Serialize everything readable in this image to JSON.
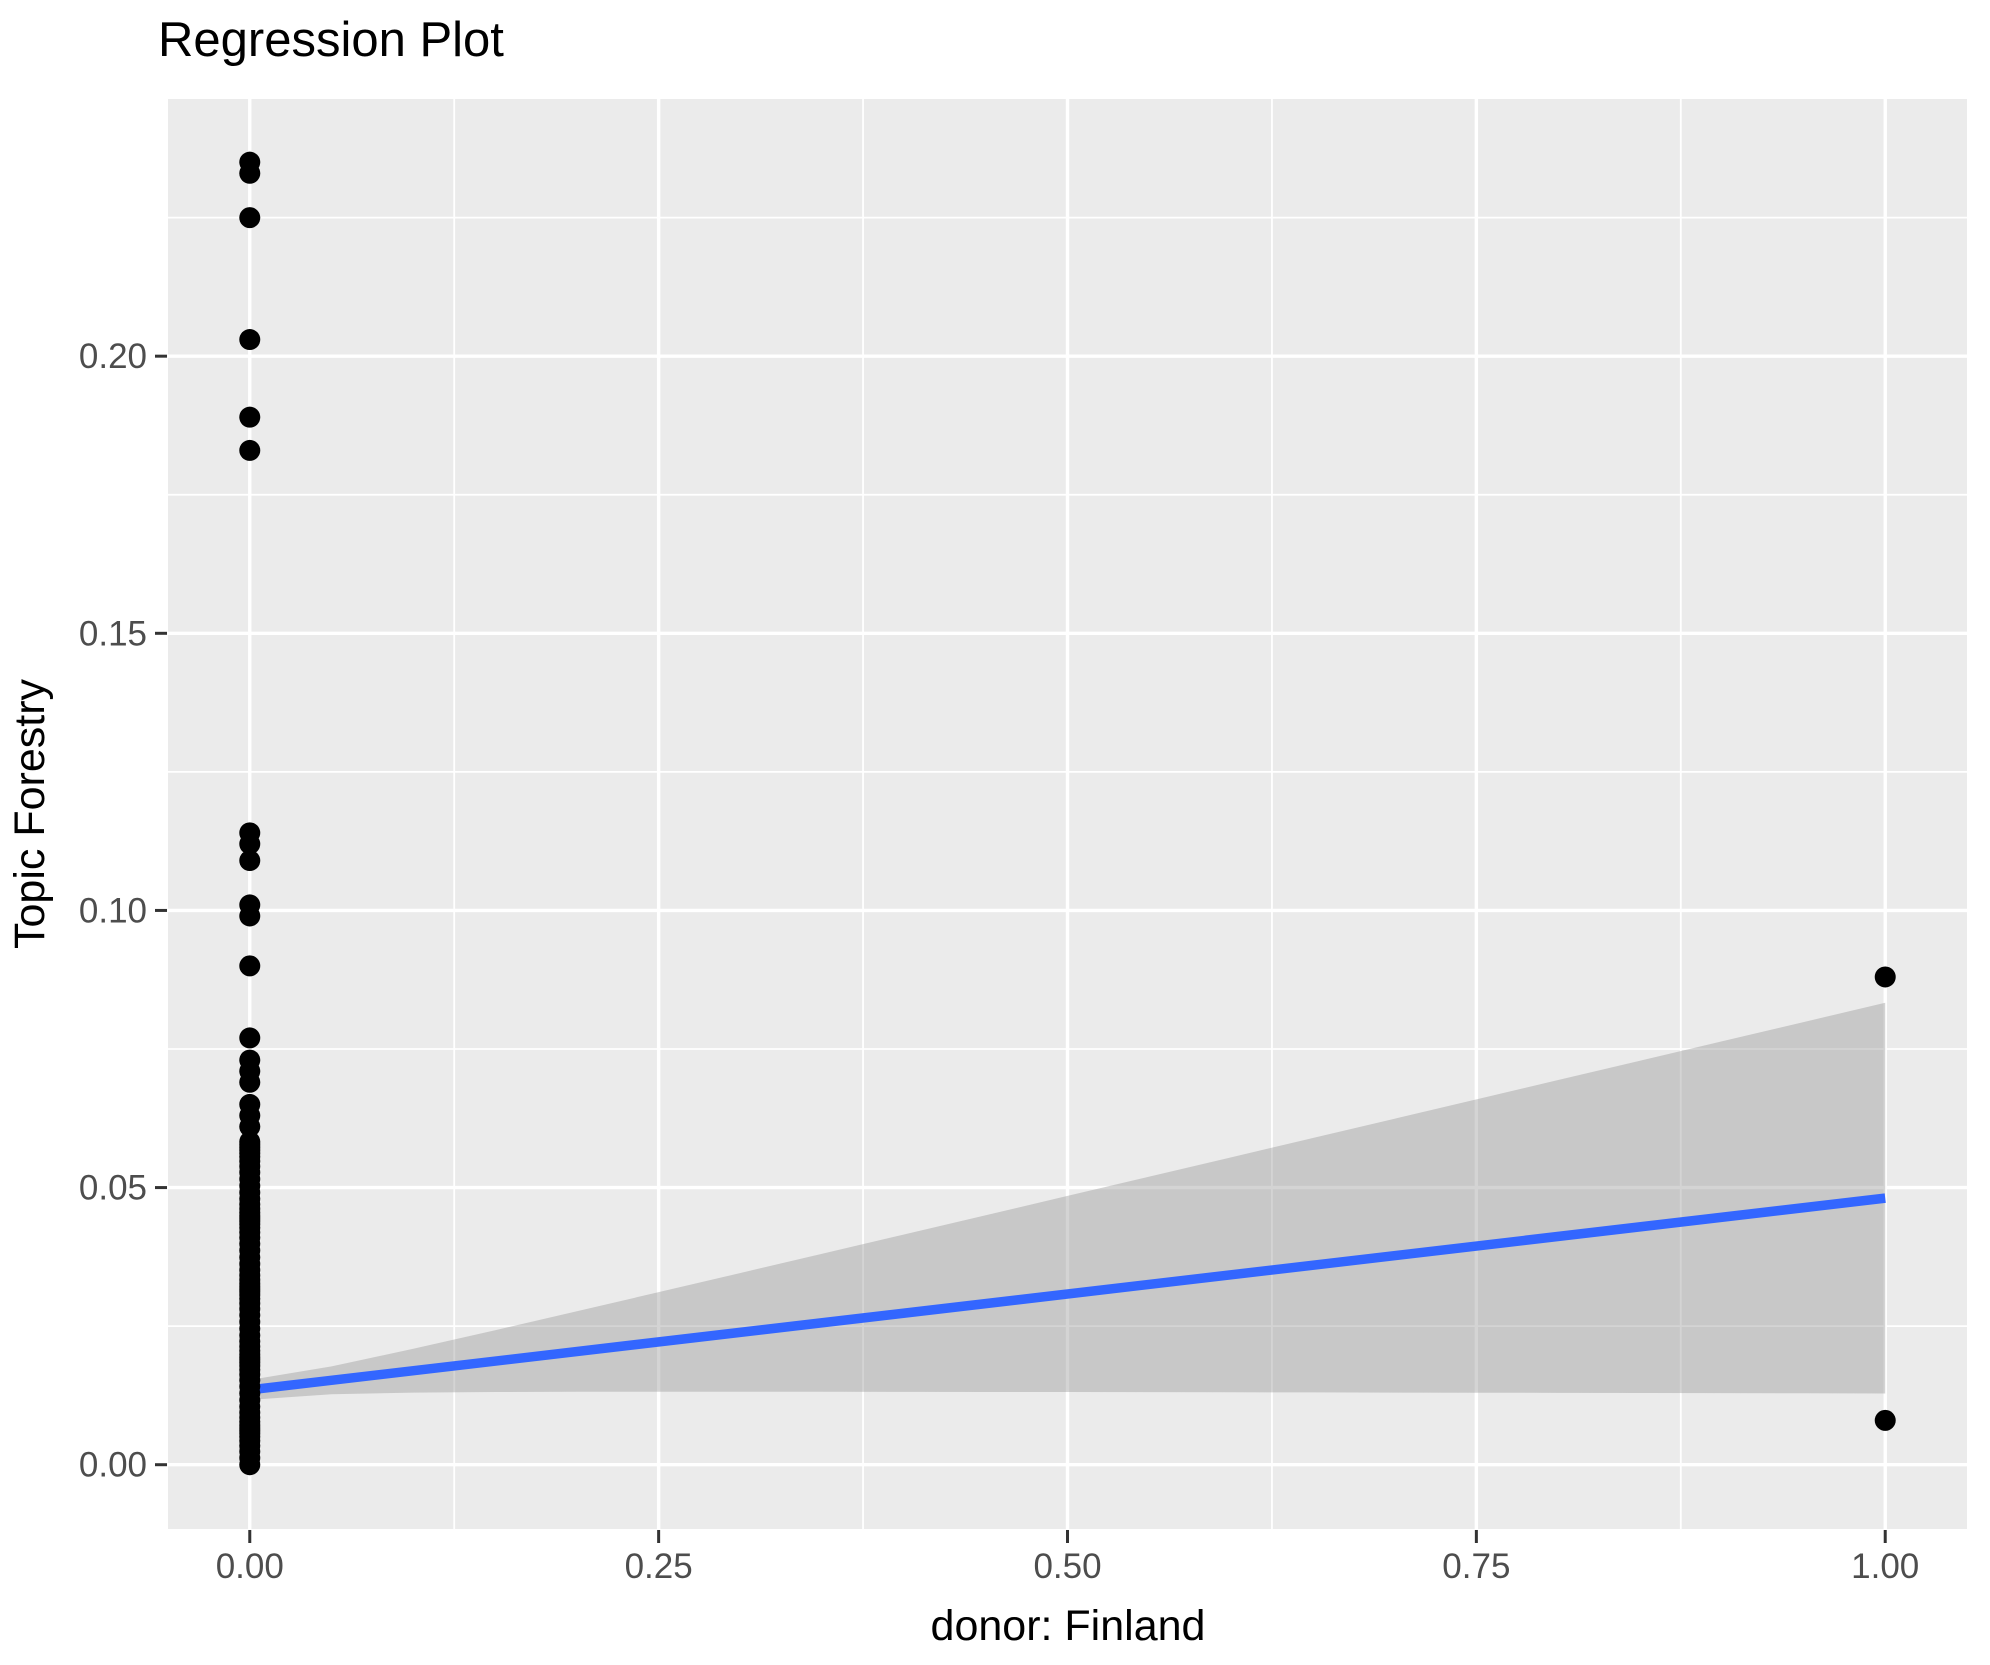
{
  "chart_data": {
    "type": "scatter",
    "title": "Regression Plot",
    "xlabel": "donor: Finland",
    "ylabel": "Topic Forestry",
    "legend": "none",
    "grid": true,
    "xlim": [
      -0.05,
      1.05
    ],
    "ylim": [
      -0.0116,
      0.2464
    ],
    "x_ticks": {
      "values": [
        0.0,
        0.25,
        0.5,
        0.75,
        1.0
      ],
      "labels": [
        "0.00",
        "0.25",
        "0.50",
        "0.75",
        "1.00"
      ]
    },
    "y_ticks": {
      "values": [
        0.0,
        0.05,
        0.1,
        0.15,
        0.2
      ],
      "labels": [
        "0.00",
        "0.05",
        "0.10",
        "0.15",
        "0.20"
      ]
    },
    "x_minor_gridlines": [
      0.125,
      0.375,
      0.625,
      0.875
    ],
    "y_minor_gridlines": [
      0.025,
      0.075,
      0.125,
      0.175,
      0.225
    ],
    "points": {
      "x0_distinct_y": [
        0.235,
        0.233,
        0.225,
        0.203,
        0.189,
        0.183,
        0.114,
        0.112,
        0.109,
        0.101,
        0.099,
        0.09,
        0.077,
        0.073,
        0.071,
        0.069,
        0.065,
        0.063,
        0.061
      ],
      "x0_dense_cluster": {
        "x": 0,
        "ymin": 0.0,
        "ymax": 0.059,
        "count": 70
      },
      "x1_y": [
        0.088,
        0.008
      ]
    },
    "regression_line": {
      "intercept": 0.0135,
      "slope": 0.0346,
      "x_start": 0,
      "x_end": 1,
      "y_start": 0.0135,
      "y_end": 0.0481
    },
    "ci_ribbon": {
      "half_width_at_x0": 0.0018,
      "half_width_at_x1": 0.0352,
      "upper_at_x0": 0.0153,
      "lower_at_x0": 0.0117,
      "upper_at_x1": 0.0833,
      "lower_at_x1": 0.0129
    },
    "colors": {
      "background": "#FFFFFF",
      "panel": "#EBEBEB",
      "gridline": "#FFFFFF",
      "point": "#000000",
      "regression_line": "#3366FF",
      "ribbon": "#999999",
      "ribbon_opacity": 0.42,
      "tick_mark": "#333333",
      "axis_text": "#4D4D4D",
      "axis_title": "#000000",
      "title": "#000000"
    }
  }
}
